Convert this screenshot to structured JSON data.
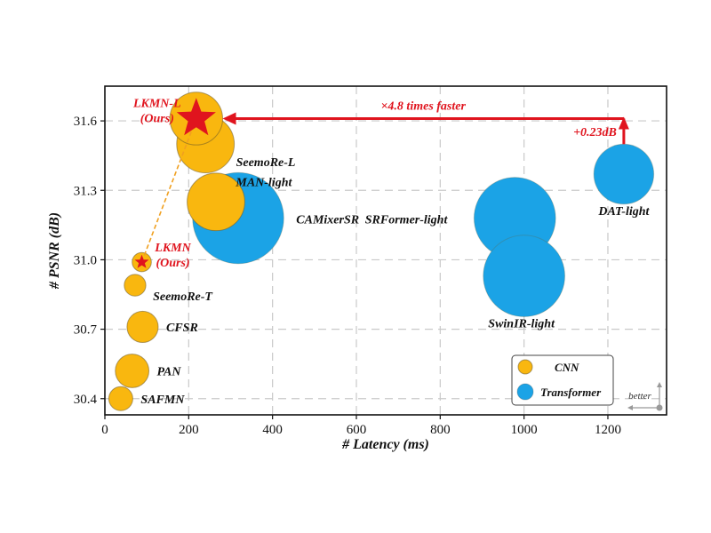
{
  "chart_data": {
    "type": "scatter",
    "xlabel": "# Latency (ms)",
    "ylabel": "# PSNR (dB)",
    "xlim": [
      0,
      1340
    ],
    "ylim": [
      30.33,
      31.75
    ],
    "xticks": [
      0,
      200,
      400,
      600,
      800,
      1000,
      1200
    ],
    "yticks": [
      30.4,
      30.7,
      31.0,
      31.3,
      31.6
    ],
    "ytick_labels": [
      "30.4",
      "30.7",
      "31.0",
      "31.3",
      "31.6"
    ],
    "grid": true,
    "colors": {
      "CNN": "#f9b70f",
      "Transformer": "#1ba3e6",
      "highlight": "#e0141e"
    },
    "legend": {
      "placement": "bottom-right",
      "entries": [
        "CNN",
        "Transformer"
      ]
    },
    "series": [
      {
        "name": "CNN",
        "points": [
          {
            "label": "SAFMN",
            "x": 38,
            "y": 30.4,
            "size": 10
          },
          {
            "label": "PAN",
            "x": 65,
            "y": 30.52,
            "size": 14
          },
          {
            "label": "CFSR",
            "x": 90,
            "y": 30.71,
            "size": 13
          },
          {
            "label": "SeemoRe-T",
            "x": 72,
            "y": 30.89,
            "size": 9
          },
          {
            "label": "LKMN\n(Ours)",
            "x": 88,
            "y": 30.99,
            "size": 8,
            "highlight": true
          },
          {
            "label": "MAN-light",
            "x": 265,
            "y": 31.25,
            "size": 24
          },
          {
            "label": "SeemoRe-L",
            "x": 240,
            "y": 31.5,
            "size": 24
          },
          {
            "label": "LKMN-L\n(Ours)",
            "x": 218,
            "y": 31.61,
            "size": 22,
            "highlight": true
          }
        ]
      },
      {
        "name": "Transformer",
        "points": [
          {
            "label": "CAMixerSR",
            "x": 318,
            "y": 31.18,
            "size": 38
          },
          {
            "label": "SRFormer-light",
            "x": 978,
            "y": 31.18,
            "size": 34
          },
          {
            "label": "SwinIR-light",
            "x": 1000,
            "y": 30.93,
            "size": 34
          },
          {
            "label": "DAT-light",
            "x": 1238,
            "y": 31.37,
            "size": 25
          }
        ]
      }
    ],
    "annotations": {
      "speedup": "×4.8 times faster",
      "gain": "+0.23dB",
      "better": "better"
    }
  }
}
